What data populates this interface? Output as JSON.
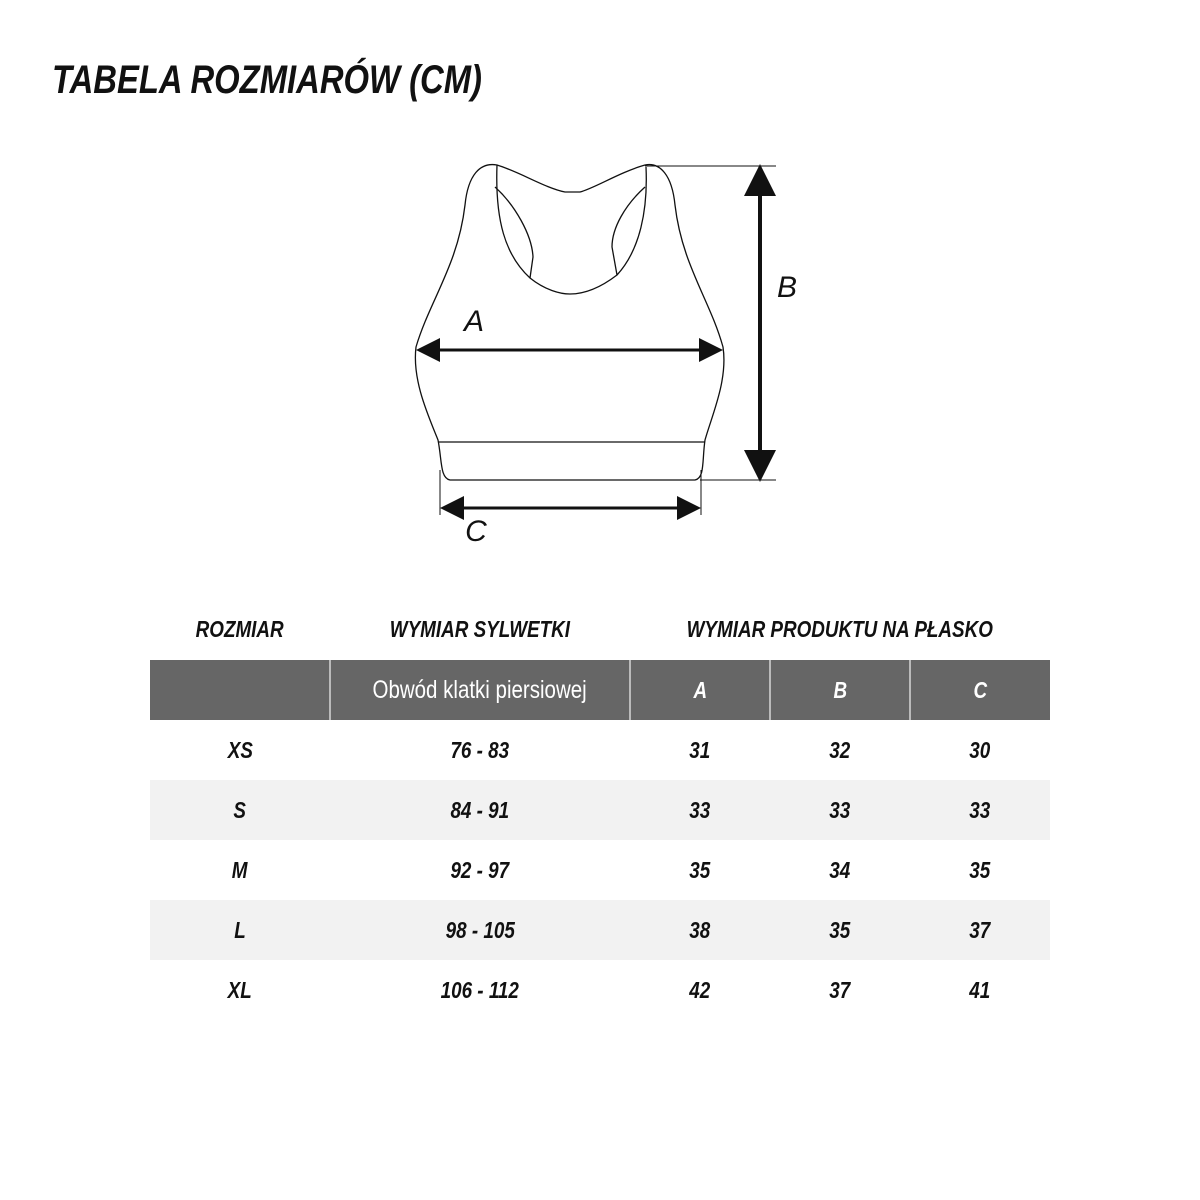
{
  "title": "TABELA ROZMIARÓW (CM)",
  "diagram": {
    "labels": {
      "a": "A",
      "b": "B",
      "c": "C"
    }
  },
  "table": {
    "group_headers": {
      "size": "ROZMIAR",
      "body": "WYMIAR SYLWETKI",
      "product": "WYMIAR PRODUKTU NA PŁASKO"
    },
    "columns": [
      "",
      "Obwód klatki piersiowej",
      "A",
      "B",
      "C"
    ],
    "rows": [
      [
        "XS",
        "76 - 83",
        "31",
        "32",
        "30"
      ],
      [
        "S",
        "84 - 91",
        "33",
        "33",
        "33"
      ],
      [
        "M",
        "92 - 97",
        "35",
        "34",
        "35"
      ],
      [
        "L",
        "98 - 105",
        "38",
        "35",
        "37"
      ],
      [
        "XL",
        "106 - 112",
        "42",
        "37",
        "41"
      ]
    ],
    "header_color": "#666666",
    "stripe_color": "#f2f2f2"
  }
}
